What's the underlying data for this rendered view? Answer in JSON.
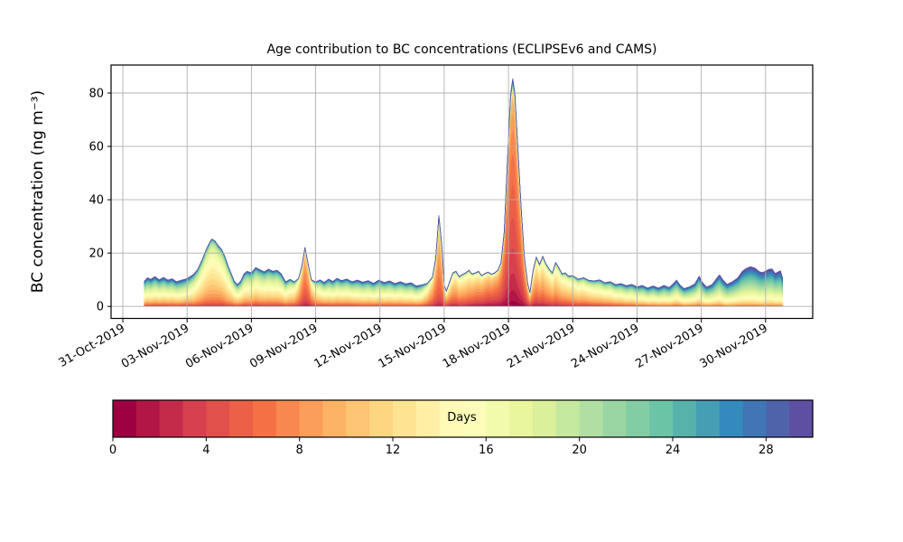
{
  "title": "Age contribution to BC concentrations (ECLIPSEv6 and CAMS)",
  "chart_data": {
    "type": "area",
    "stacked": true,
    "title": "Age contribution to BC concentrations (ECLIPSEv6 and CAMS)",
    "xlabel": "",
    "ylabel": "BC concentration (ng m⁻³)",
    "grid": true,
    "x_axis_epoch_label": "days since 31-Oct-2019 00:00",
    "xlim": [
      -0.55,
      32.2
    ],
    "ylim": [
      -4.5,
      90.5
    ],
    "y_ticks": [
      0,
      20,
      40,
      60,
      80
    ],
    "x_tick_days": [
      0,
      3,
      6,
      9,
      12,
      15,
      18,
      21,
      24,
      27,
      30
    ],
    "x_tick_labels": [
      "31-Oct-2019",
      "03-Nov-2019",
      "06-Nov-2019",
      "09-Nov-2019",
      "12-Nov-2019",
      "15-Nov-2019",
      "18-Nov-2019",
      "21-Nov-2019",
      "24-Nov-2019",
      "27-Nov-2019",
      "30-Nov-2019"
    ],
    "age_bins": 30,
    "stack_order": "youngest air (0 days, red) at bottom to oldest (30 days, purple-blue) on top",
    "points_format": [
      "day_since_31Oct",
      "total_BC_ng_m3",
      "mean_age_days",
      "age_spread_days"
    ],
    "points": [
      [
        1.0,
        9.5,
        17,
        7.5
      ],
      [
        1.15,
        10.8,
        17,
        7.5
      ],
      [
        1.3,
        10.2,
        17,
        7.5
      ],
      [
        1.5,
        11.2,
        16.5,
        7.5
      ],
      [
        1.7,
        10.0,
        16.5,
        7.5
      ],
      [
        1.9,
        10.9,
        16.5,
        7.5
      ],
      [
        2.1,
        9.9,
        16.5,
        7.5
      ],
      [
        2.3,
        10.4,
        16.5,
        7.5
      ],
      [
        2.5,
        9.3,
        16.5,
        7.5
      ],
      [
        2.7,
        9.8,
        16.5,
        7.5
      ],
      [
        2.9,
        10.2,
        16,
        7.5
      ],
      [
        3.1,
        11.0,
        15.5,
        7
      ],
      [
        3.3,
        12.0,
        15,
        6
      ],
      [
        3.5,
        14.0,
        14,
        5.5
      ],
      [
        3.7,
        17.5,
        13.5,
        5
      ],
      [
        3.9,
        21.5,
        13,
        4.8
      ],
      [
        4.05,
        24.0,
        13,
        4.6
      ],
      [
        4.15,
        25.3,
        13,
        4.6
      ],
      [
        4.3,
        24.6,
        13,
        4.6
      ],
      [
        4.45,
        22.8,
        13,
        4.8
      ],
      [
        4.6,
        21.5,
        13.2,
        5
      ],
      [
        4.75,
        19.0,
        13.5,
        5
      ],
      [
        4.9,
        15.5,
        14,
        5.2
      ],
      [
        5.05,
        12.5,
        14,
        5.5
      ],
      [
        5.2,
        9.5,
        14.5,
        6
      ],
      [
        5.35,
        8.2,
        15,
        6.5
      ],
      [
        5.5,
        9.5,
        15,
        6.5
      ],
      [
        5.65,
        12.2,
        15,
        6.5
      ],
      [
        5.8,
        13.2,
        15,
        6.5
      ],
      [
        6.0,
        12.6,
        15,
        6.5
      ],
      [
        6.2,
        14.6,
        14.5,
        6.5
      ],
      [
        6.4,
        13.8,
        15,
        6.5
      ],
      [
        6.6,
        13.0,
        15,
        6.5
      ],
      [
        6.8,
        14.0,
        15,
        6.5
      ],
      [
        7.0,
        13.2,
        15,
        6.5
      ],
      [
        7.2,
        13.6,
        15,
        6.5
      ],
      [
        7.4,
        12.2,
        15,
        6.5
      ],
      [
        7.6,
        9.2,
        15,
        6.5
      ],
      [
        7.8,
        10.2,
        14,
        6
      ],
      [
        8.0,
        9.2,
        13,
        5.5
      ],
      [
        8.2,
        10.5,
        10,
        4
      ],
      [
        8.35,
        15.0,
        8,
        3
      ],
      [
        8.5,
        22.2,
        7,
        2.6
      ],
      [
        8.65,
        16.0,
        7.5,
        3
      ],
      [
        8.8,
        10.0,
        10,
        4.5
      ],
      [
        9.0,
        9.2,
        13,
        6
      ],
      [
        9.2,
        10.0,
        14.5,
        6.5
      ],
      [
        9.4,
        9.0,
        15,
        7
      ],
      [
        9.6,
        10.3,
        15.5,
        7
      ],
      [
        9.8,
        9.4,
        15.5,
        7
      ],
      [
        10.0,
        10.6,
        15.5,
        7
      ],
      [
        10.2,
        9.7,
        15.5,
        7
      ],
      [
        10.45,
        10.3,
        15.5,
        7
      ],
      [
        10.7,
        9.3,
        15.5,
        7
      ],
      [
        10.95,
        9.9,
        16,
        7
      ],
      [
        11.2,
        9.1,
        16,
        7
      ],
      [
        11.45,
        9.7,
        16,
        7
      ],
      [
        11.7,
        8.7,
        16,
        7
      ],
      [
        11.95,
        9.9,
        16,
        7
      ],
      [
        12.2,
        9.0,
        16,
        7
      ],
      [
        12.45,
        9.6,
        16,
        7
      ],
      [
        12.7,
        8.6,
        16,
        7
      ],
      [
        12.95,
        9.3,
        16,
        7
      ],
      [
        13.2,
        8.5,
        16,
        7
      ],
      [
        13.45,
        8.9,
        16,
        7
      ],
      [
        13.7,
        7.7,
        16,
        7
      ],
      [
        13.95,
        8.1,
        15,
        6.5
      ],
      [
        14.2,
        8.6,
        12,
        5
      ],
      [
        14.45,
        11.0,
        9,
        3.5
      ],
      [
        14.6,
        18.0,
        8,
        3
      ],
      [
        14.75,
        34.2,
        8,
        2.8
      ],
      [
        14.9,
        22.0,
        8,
        3
      ],
      [
        15.0,
        8.0,
        9,
        4
      ],
      [
        15.1,
        5.8,
        9.5,
        4.5
      ],
      [
        15.25,
        9.2,
        9.5,
        4.5
      ],
      [
        15.4,
        12.6,
        9.5,
        4.5
      ],
      [
        15.55,
        13.2,
        9.5,
        4.5
      ],
      [
        15.7,
        11.2,
        10,
        4.5
      ],
      [
        15.85,
        12.0,
        10,
        4.5
      ],
      [
        16.0,
        12.6,
        10,
        4.5
      ],
      [
        16.15,
        13.6,
        9.5,
        4.5
      ],
      [
        16.3,
        12.2,
        9,
        4.5
      ],
      [
        16.45,
        12.6,
        8.5,
        4.5
      ],
      [
        16.6,
        13.2,
        8.5,
        4.5
      ],
      [
        16.75,
        11.6,
        8,
        4.2
      ],
      [
        16.9,
        12.4,
        7.5,
        4
      ],
      [
        17.05,
        12.9,
        7,
        4
      ],
      [
        17.2,
        12.1,
        7,
        4
      ],
      [
        17.35,
        12.6,
        6.5,
        3.8
      ],
      [
        17.5,
        13.6,
        6.5,
        3.5
      ],
      [
        17.65,
        16.5,
        6,
        3
      ],
      [
        17.8,
        28.0,
        5.8,
        2.8
      ],
      [
        17.95,
        55.0,
        5.6,
        2.6
      ],
      [
        18.1,
        80.0,
        5.5,
        2.6
      ],
      [
        18.2,
        85.5,
        5.5,
        2.6
      ],
      [
        18.3,
        80.0,
        5.5,
        2.6
      ],
      [
        18.45,
        58.0,
        5.8,
        2.7
      ],
      [
        18.6,
        36.0,
        6,
        2.8
      ],
      [
        18.75,
        18.0,
        6.5,
        3
      ],
      [
        18.9,
        8.5,
        7.5,
        3.5
      ],
      [
        19.0,
        5.2,
        8.5,
        4
      ],
      [
        19.15,
        13.5,
        9,
        4.3
      ],
      [
        19.3,
        18.5,
        9,
        4.3
      ],
      [
        19.45,
        15.8,
        9.5,
        4.4
      ],
      [
        19.6,
        18.8,
        9.5,
        4.4
      ],
      [
        19.75,
        16.0,
        10,
        4.5
      ],
      [
        19.9,
        14.0,
        10,
        4.5
      ],
      [
        20.05,
        12.6,
        10.5,
        4.6
      ],
      [
        20.2,
        16.5,
        10.5,
        4.6
      ],
      [
        20.35,
        14.6,
        11,
        4.8
      ],
      [
        20.5,
        12.2,
        11,
        4.8
      ],
      [
        20.65,
        12.6,
        11.5,
        5
      ],
      [
        20.8,
        11.4,
        11.5,
        5
      ],
      [
        21.0,
        11.6,
        12,
        5.2
      ],
      [
        21.25,
        10.2,
        12.5,
        5.4
      ],
      [
        21.5,
        10.8,
        12.5,
        5.4
      ],
      [
        21.75,
        9.8,
        13,
        5.6
      ],
      [
        22.0,
        9.6,
        13.5,
        5.8
      ],
      [
        22.25,
        10.0,
        14,
        6
      ],
      [
        22.5,
        8.9,
        14,
        6
      ],
      [
        22.75,
        9.3,
        14.5,
        6.2
      ],
      [
        23.0,
        8.2,
        15,
        6.4
      ],
      [
        23.25,
        8.6,
        15.5,
        6.6
      ],
      [
        23.5,
        7.8,
        16,
        6.8
      ],
      [
        23.75,
        8.3,
        16,
        6.8
      ],
      [
        24.0,
        7.4,
        17,
        7
      ],
      [
        24.25,
        7.9,
        17,
        7
      ],
      [
        24.5,
        6.9,
        17.5,
        7
      ],
      [
        24.75,
        7.7,
        17.5,
        7
      ],
      [
        25.0,
        6.9,
        18,
        7
      ],
      [
        25.25,
        7.9,
        18,
        7
      ],
      [
        25.5,
        7.1,
        18,
        7
      ],
      [
        25.7,
        8.6,
        18,
        7
      ],
      [
        25.85,
        9.9,
        18,
        7
      ],
      [
        26.0,
        8.1,
        18,
        7
      ],
      [
        26.2,
        6.7,
        18.5,
        7
      ],
      [
        26.45,
        7.4,
        18.5,
        7
      ],
      [
        26.7,
        8.5,
        18.5,
        7
      ],
      [
        26.9,
        11.4,
        18.5,
        7
      ],
      [
        27.05,
        9.0,
        19,
        7
      ],
      [
        27.25,
        7.3,
        19,
        7
      ],
      [
        27.5,
        8.2,
        19,
        7
      ],
      [
        27.7,
        10.4,
        19.5,
        7
      ],
      [
        27.85,
        11.9,
        19.5,
        7
      ],
      [
        28.0,
        10.1,
        20,
        7
      ],
      [
        28.2,
        8.3,
        20,
        7
      ],
      [
        28.45,
        9.3,
        20,
        7
      ],
      [
        28.7,
        10.7,
        20,
        7
      ],
      [
        28.9,
        13.1,
        20.5,
        7
      ],
      [
        29.1,
        14.3,
        21,
        7
      ],
      [
        29.3,
        14.9,
        21,
        7
      ],
      [
        29.5,
        14.4,
        21,
        7
      ],
      [
        29.7,
        13.1,
        21,
        7
      ],
      [
        29.85,
        12.7,
        21,
        7
      ],
      [
        30.0,
        13.3,
        21,
        7
      ],
      [
        30.15,
        13.9,
        21,
        7
      ],
      [
        30.3,
        14.1,
        21,
        7
      ],
      [
        30.45,
        12.4,
        21,
        7
      ],
      [
        30.6,
        13.0,
        21,
        7
      ],
      [
        30.7,
        13.4,
        21,
        7
      ],
      [
        30.8,
        10.6,
        21,
        7
      ]
    ]
  },
  "colorbar": {
    "label": "Days",
    "min": 0,
    "max": 30,
    "segments": 30,
    "ticks": [
      0,
      4,
      8,
      12,
      16,
      20,
      24,
      28
    ],
    "colormap": "Spectral",
    "stops": [
      "#9e0142",
      "#d53e4f",
      "#f46d43",
      "#fdae61",
      "#fee08b",
      "#ffffbf",
      "#e6f598",
      "#abdda4",
      "#66c2a5",
      "#3288bd",
      "#5e4fa2"
    ]
  },
  "style": {
    "grid_color": "#b0b0b0",
    "spine_color": "#000000",
    "background": "#ffffff"
  }
}
